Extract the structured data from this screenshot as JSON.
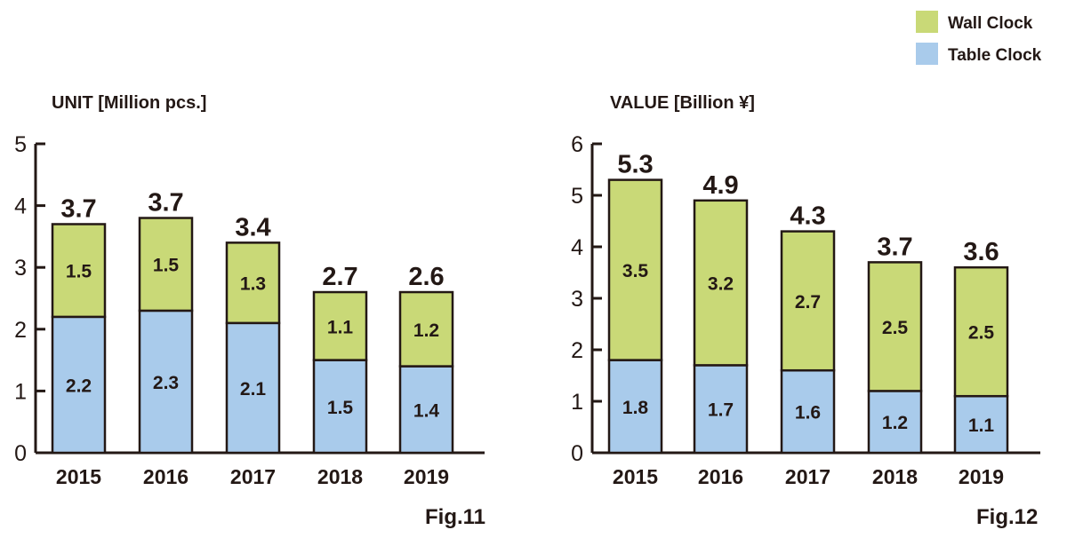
{
  "legend": [
    {
      "name": "Wall Clock",
      "color": "#c9d977"
    },
    {
      "name": "Table Clock",
      "color": "#a9cbeb"
    }
  ],
  "chart_data": [
    {
      "type": "bar",
      "stacked": true,
      "title": "UNIT [Million pcs.]",
      "figure_label": "Fig.11",
      "categories": [
        "2015",
        "2016",
        "2017",
        "2018",
        "2019"
      ],
      "ylim": [
        0,
        5
      ],
      "yticks": [
        0,
        1,
        2,
        3,
        4,
        5
      ],
      "series": [
        {
          "name": "Table Clock",
          "values": [
            2.2,
            2.3,
            2.1,
            1.5,
            1.4
          ]
        },
        {
          "name": "Wall Clock",
          "values": [
            1.5,
            1.5,
            1.3,
            1.1,
            1.2
          ]
        }
      ],
      "totals": [
        "3.7",
        "3.7",
        "3.4",
        "2.7",
        "2.6"
      ]
    },
    {
      "type": "bar",
      "stacked": true,
      "title": "VALUE [Billion ¥]",
      "figure_label": "Fig.12",
      "categories": [
        "2015",
        "2016",
        "2017",
        "2018",
        "2019"
      ],
      "ylim": [
        0,
        6
      ],
      "yticks": [
        0,
        1,
        2,
        3,
        4,
        5,
        6
      ],
      "series": [
        {
          "name": "Table Clock",
          "values": [
            1.8,
            1.7,
            1.6,
            1.2,
            1.1
          ]
        },
        {
          "name": "Wall Clock",
          "values": [
            3.5,
            3.2,
            2.7,
            2.5,
            2.5
          ]
        }
      ],
      "totals": [
        "5.3",
        "4.9",
        "4.3",
        "3.7",
        "3.6"
      ]
    }
  ]
}
